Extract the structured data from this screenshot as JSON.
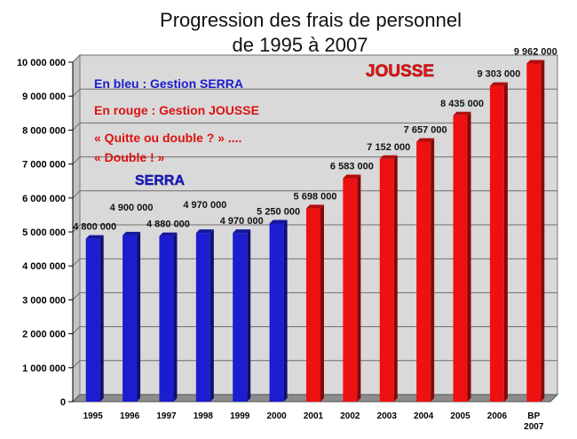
{
  "chart_data": {
    "type": "bar",
    "title_lines": [
      "Progression des frais de personnel",
      "de 1995 à 2007"
    ],
    "categories": [
      "1995",
      "1996",
      "1997",
      "1998",
      "1999",
      "2000",
      "2001",
      "2002",
      "2003",
      "2004",
      "2005",
      "2006",
      "BP 2007"
    ],
    "values": [
      4800000,
      4900000,
      4880000,
      4970000,
      4970000,
      5250000,
      5698000,
      6583000,
      7152000,
      7657000,
      8435000,
      9303000,
      9962000
    ],
    "value_labels": [
      "4 800 000",
      "4 900 000",
      "4 880 000",
      "4 970 000",
      "4 970 000",
      "5 250 000",
      "5 698 000",
      "6 583 000",
      "7 152 000",
      "7 657 000",
      "8 435 000",
      "9 303 000",
      "9 962 000"
    ],
    "bar_colors": [
      "#1c1cd0",
      "#1c1cd0",
      "#1c1cd0",
      "#1c1cd0",
      "#1c1cd0",
      "#1c1cd0",
      "#ee1111",
      "#ee1111",
      "#ee1111",
      "#ee1111",
      "#ee1111",
      "#ee1111",
      "#ee1111"
    ],
    "ylim": [
      0,
      10000000
    ],
    "yticks": [
      0,
      1000000,
      2000000,
      3000000,
      4000000,
      5000000,
      6000000,
      7000000,
      8000000,
      9000000,
      10000000
    ],
    "ytick_labels": [
      "0",
      "1 000 000",
      "2 000 000",
      "3 000 000",
      "4 000 000",
      "5 000 000",
      "6 000 000",
      "7 000 000",
      "8 000 000",
      "9 000 000",
      "10 000 000"
    ],
    "xlabel": "",
    "ylabel": "",
    "grid": true,
    "annotations": {
      "legend_blue": "En bleu : Gestion SERRA",
      "legend_red": "En rouge : Gestion JOUSSE",
      "quote_line1": "« Quitte ou double ? » ....",
      "quote_line2": "« Double ! »",
      "label_serra": "SERRA",
      "label_jousse": "JOUSSE"
    },
    "colors": {
      "blue": "#1c1cd0",
      "red": "#ee1111",
      "wall": "#d9d9d9",
      "floor": "#8c8c8c",
      "grid": "#6e6e6e"
    }
  }
}
